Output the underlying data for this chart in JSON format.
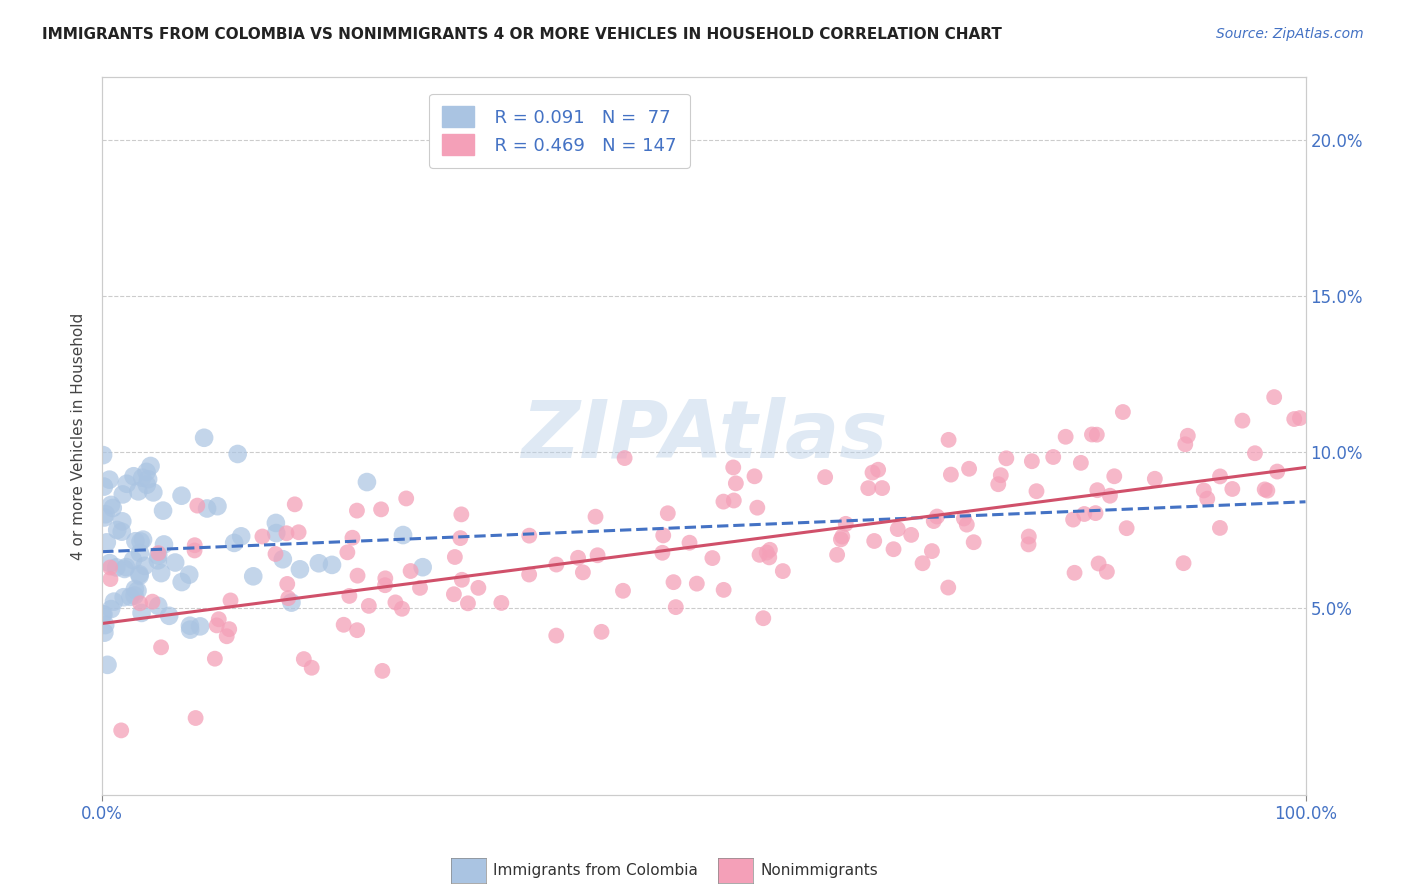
{
  "title": "IMMIGRANTS FROM COLOMBIA VS NONIMMIGRANTS 4 OR MORE VEHICLES IN HOUSEHOLD CORRELATION CHART",
  "source": "Source: ZipAtlas.com",
  "ylabel": "4 or more Vehicles in Household",
  "watermark": "ZIPAtlas",
  "xlim": [
    0,
    100
  ],
  "ylim": [
    -1,
    22
  ],
  "ytick_vals": [
    5,
    10,
    15,
    20
  ],
  "ytick_labels_right": [
    "5.0%",
    "10.0%",
    "15.0%",
    "20.0%"
  ],
  "xtick_vals": [
    0,
    100
  ],
  "xtick_labels": [
    "0.0%",
    "100.0%"
  ],
  "blue_R": 0.091,
  "blue_N": 77,
  "pink_R": 0.469,
  "pink_N": 147,
  "blue_color": "#aac4e2",
  "blue_line_color": "#4472c4",
  "pink_color": "#f4a0b8",
  "pink_line_color": "#d0506a",
  "legend_label_blue": "Immigrants from Colombia",
  "legend_label_pink": "Nonimmigrants",
  "title_color": "#222222",
  "axis_color": "#4472c4",
  "background_color": "#ffffff",
  "grid_color": "#cccccc",
  "blue_seed": 12,
  "pink_seed": 99,
  "blue_intercept": 6.8,
  "blue_slope": 0.016,
  "pink_intercept": 4.5,
  "pink_slope": 0.05
}
